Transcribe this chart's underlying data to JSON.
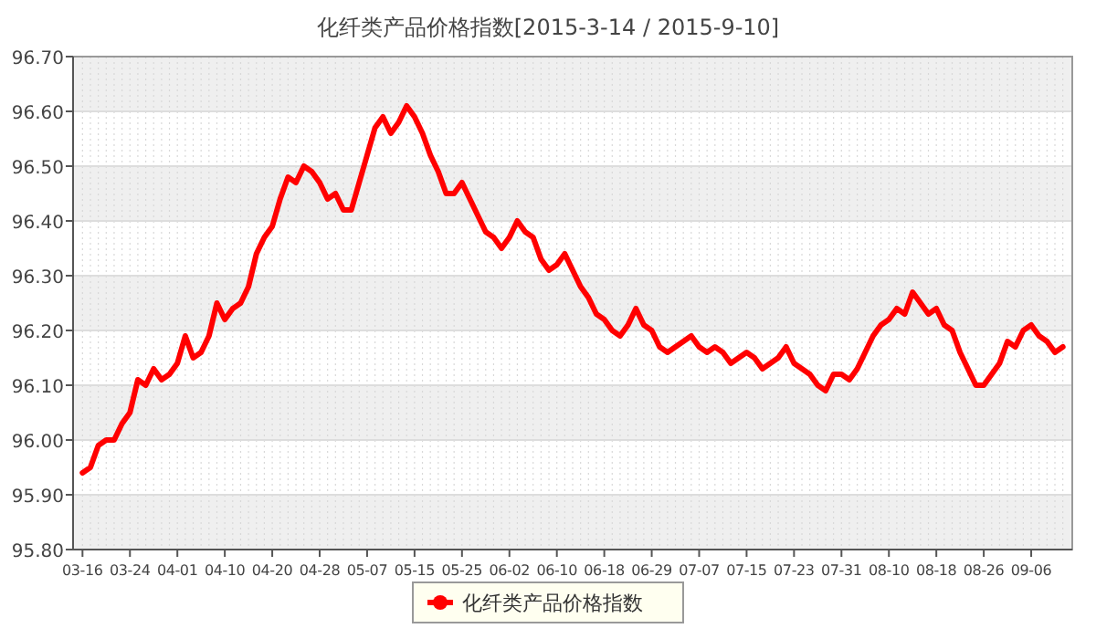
{
  "chart_data": {
    "type": "line",
    "title": "化纤类产品价格指数[2015-3-14 / 2015-9-10]",
    "categories": [
      "03-16",
      null,
      null,
      null,
      null,
      null,
      "03-24",
      null,
      null,
      null,
      null,
      null,
      "04-01",
      null,
      null,
      null,
      null,
      null,
      "04-10",
      null,
      null,
      null,
      null,
      null,
      "04-20",
      null,
      null,
      null,
      null,
      null,
      "04-28",
      null,
      null,
      null,
      null,
      null,
      "05-07",
      null,
      null,
      null,
      null,
      null,
      "05-15",
      null,
      null,
      null,
      null,
      null,
      "05-25",
      null,
      null,
      null,
      null,
      null,
      "06-02",
      null,
      null,
      null,
      null,
      null,
      "06-10",
      null,
      null,
      null,
      null,
      null,
      "06-18",
      null,
      null,
      null,
      null,
      null,
      "06-29",
      null,
      null,
      null,
      null,
      null,
      "07-07",
      null,
      null,
      null,
      null,
      null,
      "07-15",
      null,
      null,
      null,
      null,
      null,
      "07-23",
      null,
      null,
      null,
      null,
      null,
      "07-31",
      null,
      null,
      null,
      null,
      null,
      "08-10",
      null,
      null,
      null,
      null,
      null,
      "08-18",
      null,
      null,
      null,
      null,
      null,
      "08-26",
      null,
      null,
      null,
      null,
      null,
      "09-06",
      null,
      null,
      null,
      null
    ],
    "series": [
      {
        "name": "化纤类产品价格指数",
        "color": "#ff0000",
        "values": [
          95.94,
          95.95,
          95.99,
          96.0,
          96.0,
          96.03,
          96.05,
          96.11,
          96.1,
          96.13,
          96.11,
          96.12,
          96.14,
          96.19,
          96.15,
          96.16,
          96.19,
          96.25,
          96.22,
          96.24,
          96.25,
          96.28,
          96.34,
          96.37,
          96.39,
          96.44,
          96.48,
          96.47,
          96.5,
          96.49,
          96.47,
          96.44,
          96.45,
          96.42,
          96.42,
          96.47,
          96.52,
          96.57,
          96.59,
          96.56,
          96.58,
          96.61,
          96.59,
          96.56,
          96.52,
          96.49,
          96.45,
          96.45,
          96.47,
          96.44,
          96.41,
          96.38,
          96.37,
          96.35,
          96.37,
          96.4,
          96.38,
          96.37,
          96.33,
          96.31,
          96.32,
          96.34,
          96.31,
          96.28,
          96.26,
          96.23,
          96.22,
          96.2,
          96.19,
          96.21,
          96.24,
          96.21,
          96.2,
          96.17,
          96.16,
          96.17,
          96.18,
          96.19,
          96.17,
          96.16,
          96.17,
          96.16,
          96.14,
          96.15,
          96.16,
          96.15,
          96.13,
          96.14,
          96.15,
          96.17,
          96.14,
          96.13,
          96.12,
          96.1,
          96.09,
          96.12,
          96.12,
          96.11,
          96.13,
          96.16,
          96.19,
          96.21,
          96.22,
          96.24,
          96.23,
          96.27,
          96.25,
          96.23,
          96.24,
          96.21,
          96.2,
          96.16,
          96.13,
          96.1,
          96.1,
          96.12,
          96.14,
          96.18,
          96.17,
          96.2,
          96.21,
          96.19,
          96.18,
          96.16,
          96.17
        ]
      }
    ],
    "ylim": [
      95.8,
      96.7
    ],
    "yticks": [
      {
        "value": 95.8,
        "label": "95.80"
      },
      {
        "value": 95.9,
        "label": "95.90"
      },
      {
        "value": 96.0,
        "label": "96.00"
      },
      {
        "value": 96.1,
        "label": "96.10"
      },
      {
        "value": 96.2,
        "label": "96.20"
      },
      {
        "value": 96.3,
        "label": "96.30"
      },
      {
        "value": 96.4,
        "label": "96.40"
      },
      {
        "value": 96.5,
        "label": "96.50"
      },
      {
        "value": 96.6,
        "label": "96.60"
      },
      {
        "value": 96.7,
        "label": "96.70"
      }
    ],
    "grid": true,
    "legend": "bottom",
    "line_style": "solid"
  }
}
